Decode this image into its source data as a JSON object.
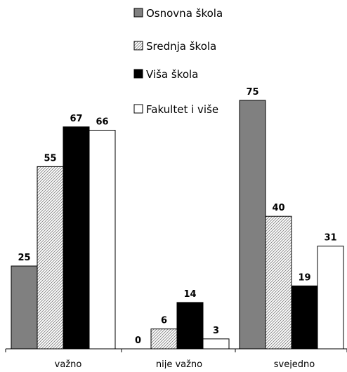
{
  "chart_data": {
    "type": "bar",
    "title": "",
    "xlabel": "",
    "ylabel": "",
    "ylim": [
      0,
      80
    ],
    "grid": false,
    "legend_position": "top-right",
    "categories": [
      "važno",
      "nije važno",
      "svejedno"
    ],
    "series": [
      {
        "name": "Osnovna škola",
        "values": [
          25,
          0,
          75
        ],
        "fill": "#808080",
        "pattern": "solid"
      },
      {
        "name": "Srednja škola",
        "values": [
          55,
          6,
          40
        ],
        "fill": "#ffffff",
        "pattern": "hatch"
      },
      {
        "name": "Viša škola",
        "values": [
          67,
          14,
          19
        ],
        "fill": "#000000",
        "pattern": "solid"
      },
      {
        "name": "Fakultet i više",
        "values": [
          66,
          3,
          31
        ],
        "fill": "#ffffff",
        "pattern": "solid"
      }
    ]
  }
}
